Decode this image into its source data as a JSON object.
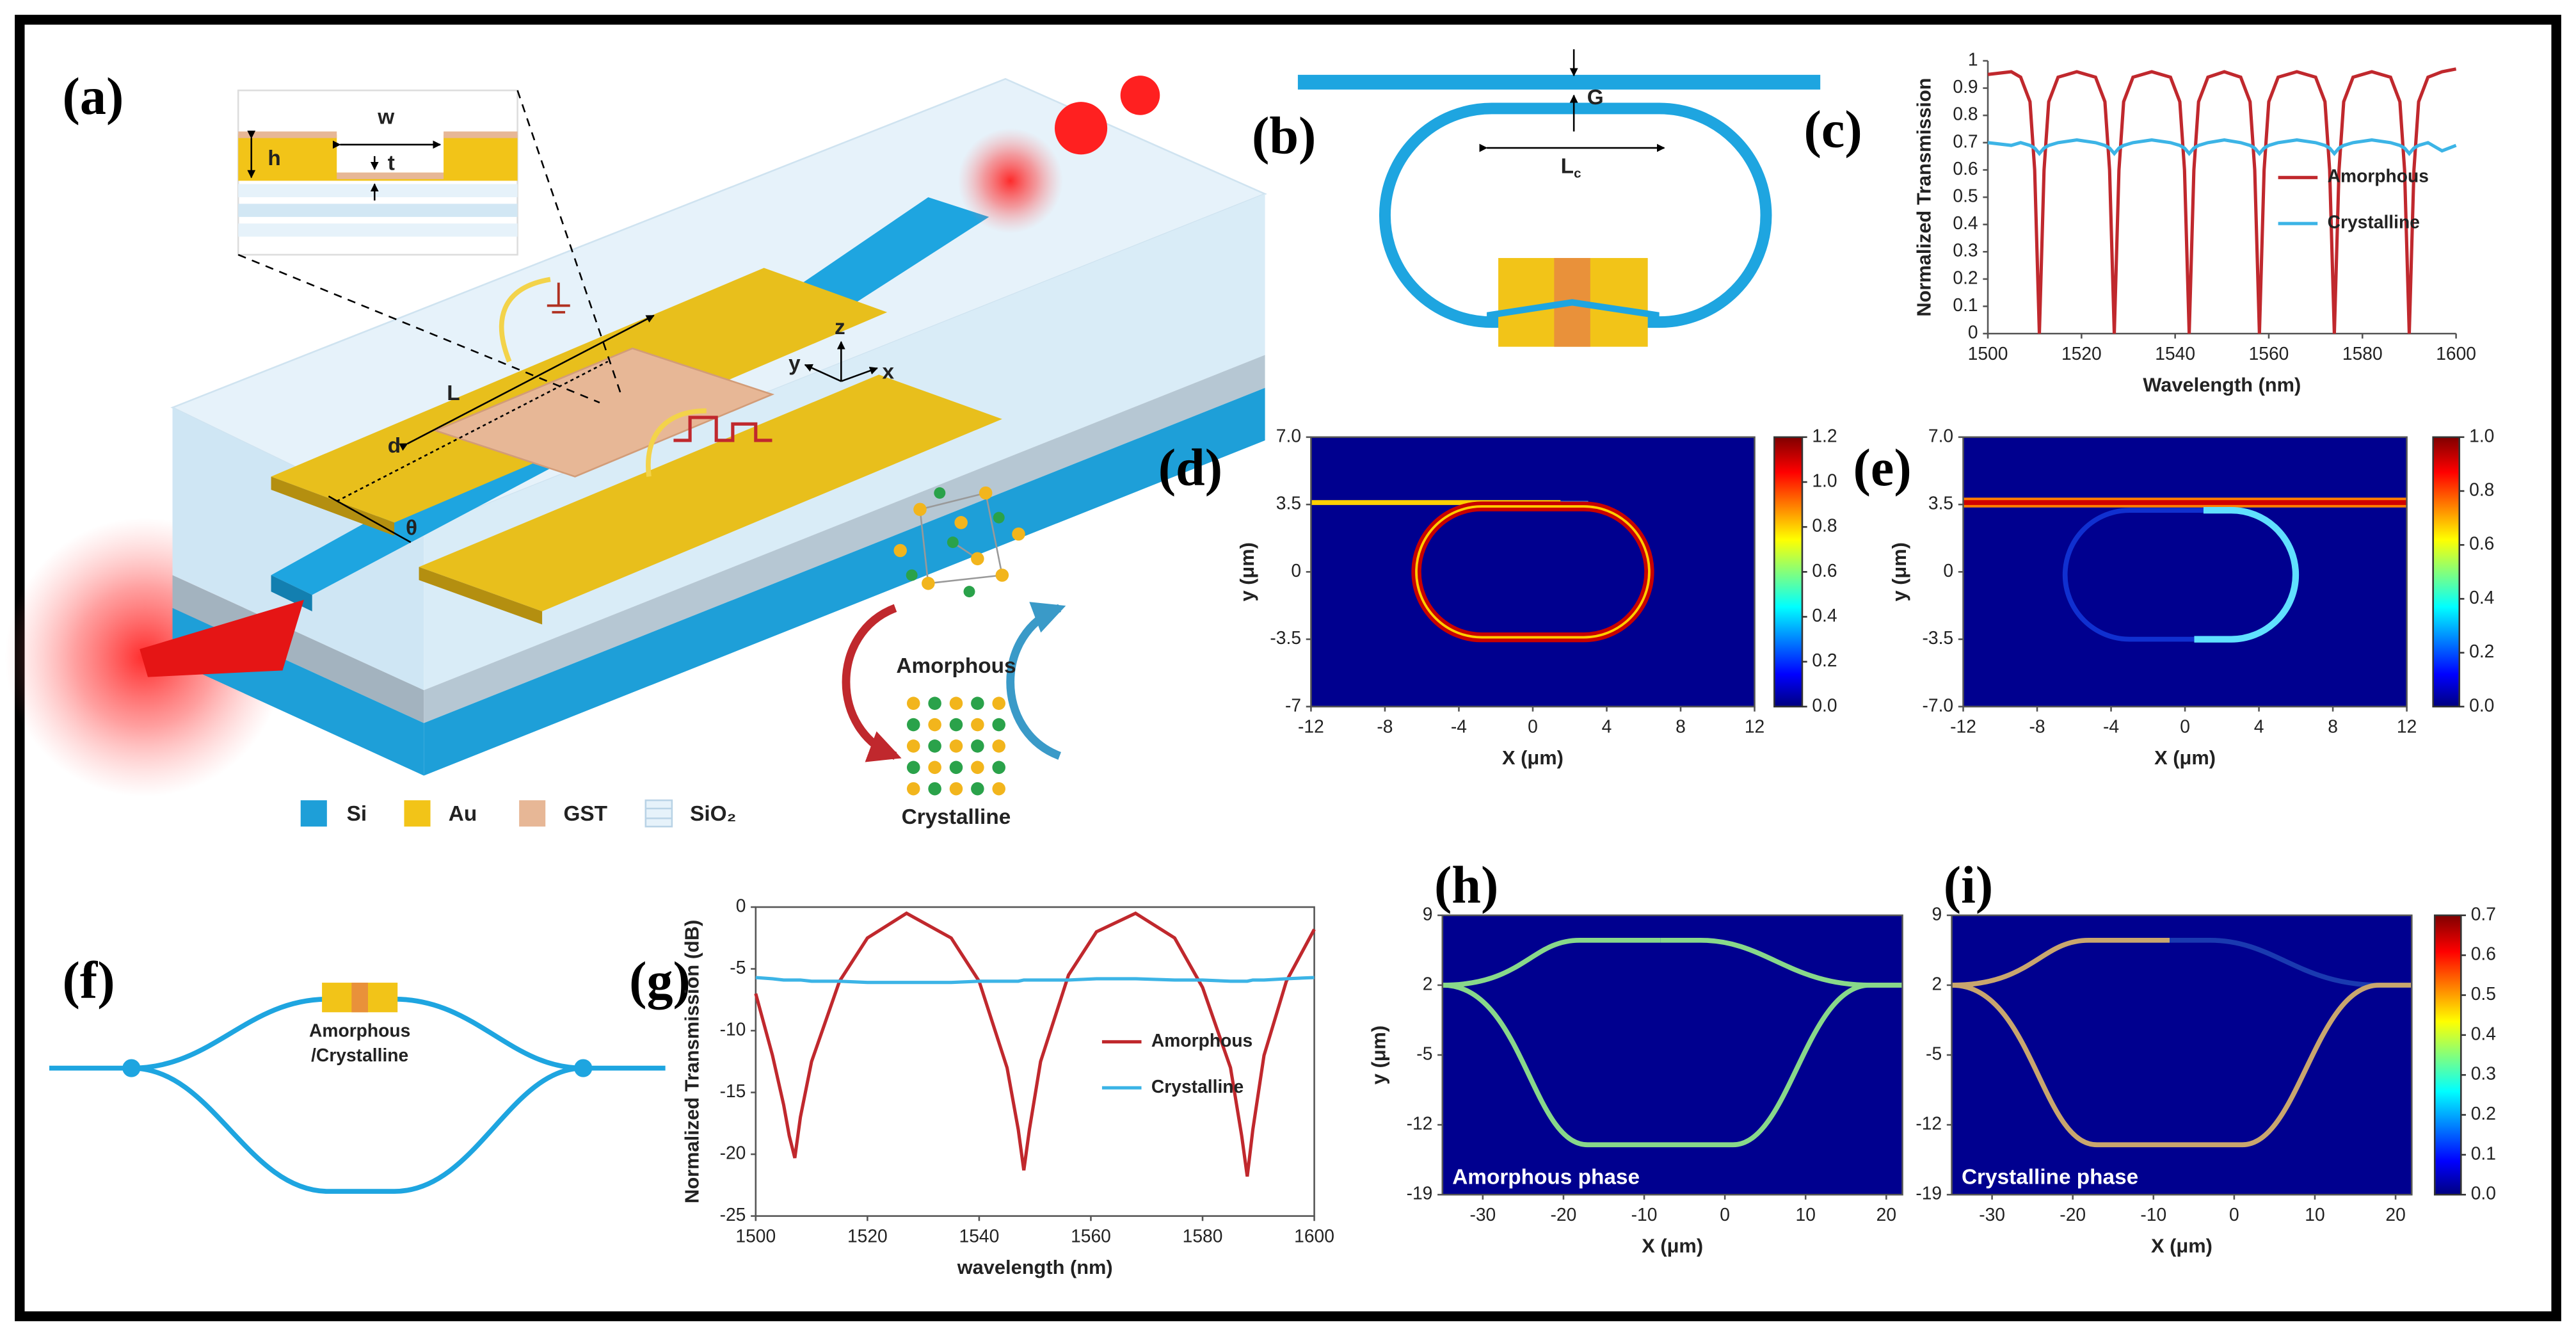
{
  "figure": {
    "panel_labels": [
      "(a)",
      "(b)",
      "(c)",
      "(d)",
      "(e)",
      "(f)",
      "(g)",
      "(h)",
      "(i)"
    ],
    "a": {
      "inset_labels": [
        "w",
        "h",
        "t"
      ],
      "device_labels": [
        "L",
        "d",
        "θ"
      ],
      "axes_labels": [
        "y",
        "z",
        "x"
      ],
      "legend": [
        "Si",
        "Au",
        "GST",
        "SiO₂"
      ],
      "phases": [
        "Amorphous",
        "Crystalline"
      ]
    },
    "b": {
      "gap": "G",
      "length": "L",
      "length_sub": "c"
    },
    "f": {
      "label": [
        "Amorphous",
        "/Crystalline"
      ]
    }
  },
  "chart_data": [
    {
      "type": "line",
      "xlabel": "Wavelength (nm)",
      "ylabel": "Normalized Transmission",
      "xlim": [
        1500,
        1600
      ],
      "xticks": [
        1500,
        1520,
        1540,
        1560,
        1580,
        1600
      ],
      "ylim": [
        0,
        1
      ],
      "yticks": [
        0,
        0.1,
        0.2,
        0.3,
        0.4,
        0.5,
        0.6,
        0.7,
        0.8,
        0.9,
        1
      ],
      "legend": "right",
      "x": [
        1500,
        1505,
        1507,
        1509,
        1510,
        1510.5,
        1511,
        1511.5,
        1512,
        1513,
        1515,
        1519,
        1523,
        1525,
        1526,
        1526.5,
        1527,
        1527.5,
        1528,
        1529,
        1531,
        1535,
        1539,
        1541,
        1542,
        1542.5,
        1543,
        1543.5,
        1544,
        1545,
        1547,
        1550.5,
        1554,
        1556,
        1557,
        1557.5,
        1558,
        1558.5,
        1559,
        1560,
        1562,
        1566,
        1570,
        1572,
        1573,
        1573.5,
        1574,
        1574.5,
        1575,
        1576,
        1578,
        1582,
        1586,
        1588,
        1589,
        1589.5,
        1590,
        1590.5,
        1591,
        1592,
        1594,
        1597,
        1600
      ],
      "series": [
        {
          "name": "Amorphous",
          "color": "#c0282d",
          "values": [
            0.95,
            0.96,
            0.94,
            0.85,
            0.6,
            0.3,
            0,
            0.3,
            0.6,
            0.85,
            0.94,
            0.96,
            0.94,
            0.85,
            0.6,
            0.3,
            0,
            0.3,
            0.6,
            0.85,
            0.94,
            0.96,
            0.94,
            0.85,
            0.6,
            0.3,
            0,
            0.3,
            0.6,
            0.85,
            0.94,
            0.96,
            0.94,
            0.85,
            0.6,
            0.3,
            0,
            0.3,
            0.6,
            0.85,
            0.94,
            0.96,
            0.94,
            0.85,
            0.6,
            0.3,
            0,
            0.3,
            0.6,
            0.85,
            0.94,
            0.96,
            0.94,
            0.85,
            0.6,
            0.3,
            0,
            0.3,
            0.6,
            0.85,
            0.94,
            0.96,
            0.97
          ]
        },
        {
          "name": "Crystalline",
          "color": "#3cb4e6",
          "values": [
            0.7,
            0.69,
            0.7,
            0.69,
            0.68,
            0.67,
            0.66,
            0.67,
            0.68,
            0.69,
            0.7,
            0.71,
            0.7,
            0.69,
            0.68,
            0.67,
            0.66,
            0.67,
            0.68,
            0.69,
            0.7,
            0.71,
            0.7,
            0.69,
            0.68,
            0.67,
            0.66,
            0.67,
            0.68,
            0.69,
            0.7,
            0.71,
            0.7,
            0.69,
            0.68,
            0.67,
            0.66,
            0.67,
            0.68,
            0.69,
            0.7,
            0.71,
            0.7,
            0.69,
            0.68,
            0.67,
            0.66,
            0.67,
            0.68,
            0.69,
            0.7,
            0.71,
            0.7,
            0.69,
            0.68,
            0.67,
            0.66,
            0.67,
            0.68,
            0.69,
            0.7,
            0.67,
            0.69
          ]
        }
      ]
    },
    {
      "type": "line",
      "xlabel": "wavelength (nm)",
      "ylabel": "Normalized Transmission (dB)",
      "xlim": [
        1500,
        1600
      ],
      "xticks": [
        1500,
        1520,
        1540,
        1560,
        1580,
        1600
      ],
      "ylim": [
        -25,
        0
      ],
      "yticks": [
        -25,
        -20,
        -15,
        -10,
        -5,
        0
      ],
      "legend": "right",
      "x": [
        1500,
        1503,
        1505,
        1506,
        1507,
        1508,
        1510,
        1515,
        1520,
        1527,
        1535,
        1540,
        1545,
        1547,
        1548,
        1549,
        1551,
        1556,
        1561,
        1568,
        1575,
        1580,
        1585,
        1587,
        1588,
        1589,
        1591,
        1595,
        1600
      ],
      "series": [
        {
          "name": "Amorphous",
          "color": "#c0282d",
          "values": [
            -7,
            -12,
            -16,
            -18.5,
            -20.3,
            -17,
            -12.5,
            -6,
            -2.5,
            -0.5,
            -2.5,
            -6,
            -13,
            -18,
            -21.3,
            -18,
            -12.5,
            -5.5,
            -2,
            -0.5,
            -2.5,
            -6.5,
            -13,
            -18.5,
            -21.8,
            -18,
            -12,
            -6,
            -1.8
          ]
        },
        {
          "name": "Crystalline",
          "color": "#3cb4e6",
          "values": [
            -5.7,
            -5.8,
            -5.9,
            -5.9,
            -5.9,
            -5.9,
            -6,
            -6,
            -6.1,
            -6.1,
            -6.1,
            -6,
            -6,
            -6,
            -5.9,
            -5.9,
            -5.9,
            -5.9,
            -5.8,
            -5.8,
            -5.9,
            -5.9,
            -6,
            -6,
            -6,
            -5.9,
            -5.9,
            -5.8,
            -5.7
          ]
        }
      ]
    },
    {
      "type": "field",
      "xlabel": "X (μm)",
      "ylabel": "y (μm)",
      "xlim": [
        -12,
        12
      ],
      "xticks": [
        -12,
        -8,
        -4,
        0,
        4,
        8,
        12
      ],
      "ylim": [
        -7,
        7
      ],
      "yticks": [
        {
          "value": 7,
          "label": "7.0"
        },
        3.5,
        0,
        -3.5,
        -7
      ],
      "clim": [
        0,
        1.2
      ],
      "cticks": [
        {
          "value": 0,
          "label": "0.0"
        },
        0.2,
        0.4,
        0.6,
        0.8,
        {
          "value": 1,
          "label": "1.0"
        },
        1.2
      ]
    },
    {
      "type": "field",
      "xlabel": "X (μm)",
      "ylabel": "y (μm)",
      "xlim": [
        -12,
        12
      ],
      "xticks": [
        -12,
        -8,
        -4,
        0,
        4,
        8,
        12
      ],
      "ylim": [
        -7,
        7
      ],
      "yticks": [
        {
          "value": 7,
          "label": "7.0"
        },
        3.5,
        0,
        -3.5,
        {
          "value": -7,
          "label": "-7.0"
        }
      ],
      "clim": [
        0,
        1
      ],
      "cticks": [
        {
          "value": 0,
          "label": "0.0"
        },
        0.2,
        0.4,
        0.6,
        0.8,
        {
          "value": 1,
          "label": "1.0"
        }
      ]
    },
    {
      "type": "field",
      "xlabel": "X (μm)",
      "ylabel": "y (μm)",
      "annotation": "Amorphous phase",
      "xlim": [
        -35,
        22
      ],
      "xticks": [
        -30,
        -20,
        -10,
        0,
        10,
        20
      ],
      "ylim": [
        -19,
        9
      ],
      "yticks": [
        9,
        2,
        -5,
        -12,
        -19
      ]
    },
    {
      "type": "field",
      "xlabel": "X (μm)",
      "annotation": "Crystalline phase",
      "xlim": [
        -35,
        22
      ],
      "xticks": [
        -30,
        -20,
        -10,
        0,
        10,
        20
      ],
      "ylim": [
        -19,
        9
      ],
      "yticks": [
        9,
        2,
        -5,
        -12,
        -19
      ],
      "clim": [
        0,
        0.7
      ],
      "cticks": [
        {
          "value": 0,
          "label": "0.0"
        },
        0.1,
        0.2,
        0.3,
        0.4,
        0.5,
        0.6,
        0.7
      ]
    }
  ]
}
